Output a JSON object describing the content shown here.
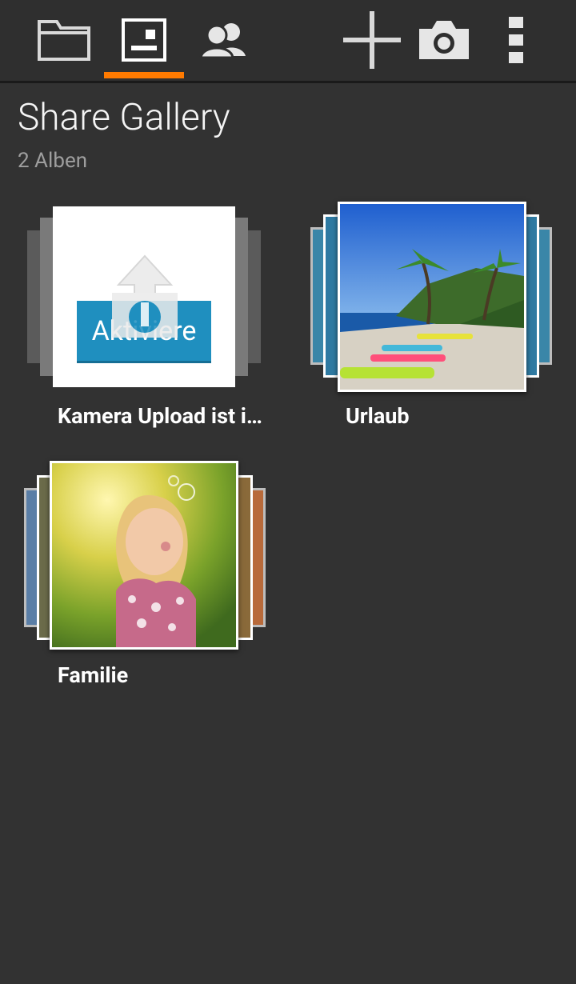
{
  "header": {
    "tabs": [
      {
        "name": "folder",
        "icon": "folder-icon",
        "selected": false
      },
      {
        "name": "gallery",
        "icon": "gallery-icon",
        "selected": true
      },
      {
        "name": "people",
        "icon": "people-icon",
        "selected": false
      }
    ],
    "actions": [
      {
        "name": "add",
        "icon": "plus-icon"
      },
      {
        "name": "camera",
        "icon": "camera-icon"
      },
      {
        "name": "more",
        "icon": "overflow-menu-icon"
      }
    ],
    "accent_color": "#ff7a00"
  },
  "page": {
    "title": "Share Gallery",
    "subtitle": "2 Alben"
  },
  "albums": [
    {
      "label": "Kamera Upload ist i…",
      "thumb_button": "Aktiviere",
      "thumb_icon": "upload-icon"
    },
    {
      "label": "Urlaub",
      "thumb": "beach-photo"
    },
    {
      "label": "Familie",
      "thumb": "child-bubbles-photo"
    }
  ]
}
